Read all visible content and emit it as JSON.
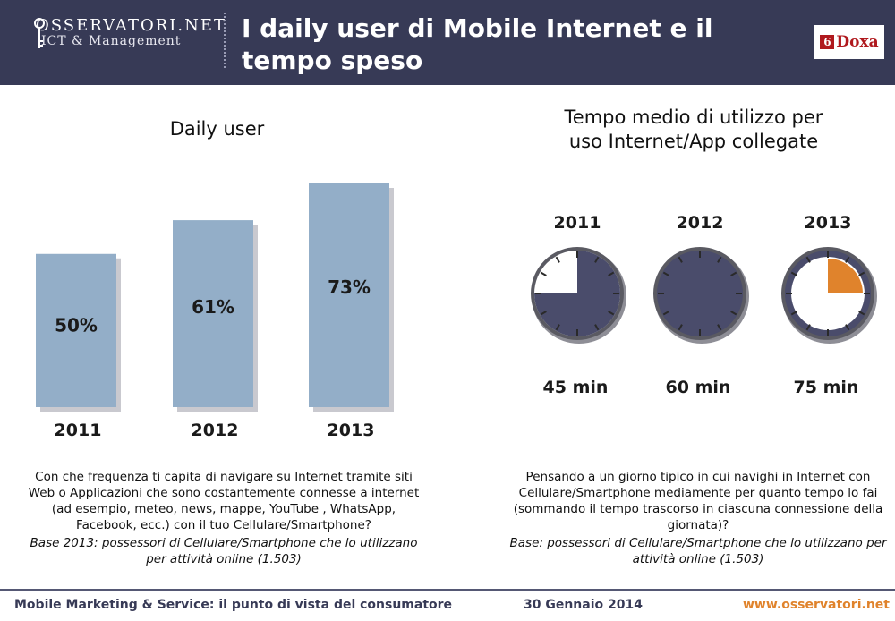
{
  "header": {
    "logo_main": "OSSERVATORI.NET",
    "logo_sub": "ICT & Management",
    "title": "I daily user di Mobile Internet e il tempo speso",
    "brand": "Doxa",
    "brand_mark": "6"
  },
  "chart_data": [
    {
      "type": "bar",
      "title": "Daily user",
      "categories": [
        "2011",
        "2012",
        "2013"
      ],
      "values": [
        50,
        61,
        73
      ],
      "value_labels": [
        "50%",
        "61%",
        "73%"
      ],
      "unit": "%",
      "bar_color": "#93aec8"
    },
    {
      "type": "pie",
      "title": "Tempo medio di utilizzo per uso Internet/App collegate",
      "categories": [
        "2011",
        "2012",
        "2013"
      ],
      "values": [
        45,
        60,
        75
      ],
      "value_labels": [
        "45 min",
        "60 min",
        "75 min"
      ],
      "unit": "min",
      "fill_color": "#4a4c6b",
      "extra_color": "#e0832c"
    }
  ],
  "left": {
    "title": "Daily user",
    "question": "Con che frequenza ti capita di navigare su Internet tramite siti Web o Applicazioni che sono costantemente connesse a internet (ad esempio, meteo, news, mappe, YouTube , WhatsApp, Facebook, ecc.) con il tuo Cellulare/Smartphone?",
    "base": "Base 2013: possessori di Cellulare/Smartphone che lo utilizzano per attività online (1.503)"
  },
  "right": {
    "title_line1": "Tempo medio di utilizzo per",
    "title_line2": "uso Internet/App collegate",
    "question": "Pensando a un giorno tipico in cui navighi in Internet con Cellulare/Smartphone mediamente per quanto tempo lo fai (sommando il tempo trascorso in ciascuna connessione della giornata)?",
    "base": "Base: possessori di Cellulare/Smartphone che lo utilizzano per attività online (1.503)"
  },
  "footer": {
    "left": "Mobile Marketing & Service: il punto di vista del consumatore",
    "center": "30 Gennaio 2014",
    "right": "www.osservatori.net"
  }
}
